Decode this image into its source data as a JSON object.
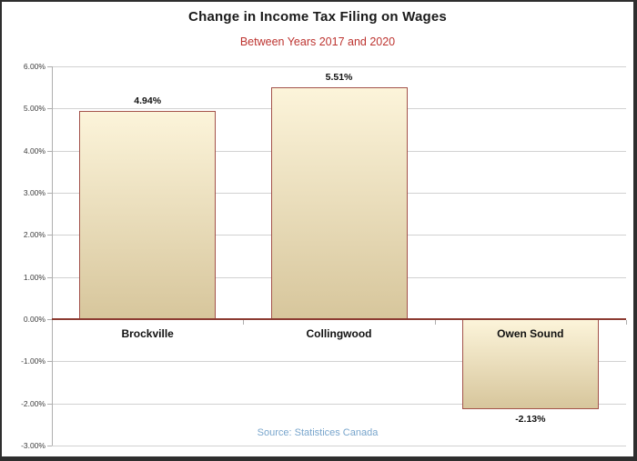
{
  "chart_data": {
    "type": "bar",
    "title": "Change in Income Tax Filing on Wages",
    "subtitle": "Between Years 2017 and 2020",
    "source": "Source: Statistices Canada",
    "categories": [
      "Brockville",
      "Collingwood",
      "Owen Sound"
    ],
    "values": [
      4.94,
      5.51,
      -2.13
    ],
    "value_labels": [
      "4.94%",
      "5.51%",
      "-2.13%"
    ],
    "ylim": [
      -3,
      6
    ],
    "ytick_step": 1,
    "ytick_labels": [
      "6.00%",
      "5.00%",
      "4.00%",
      "3.00%",
      "2.00%",
      "1.00%",
      "0.00%",
      "-1.00%",
      "-2.00%",
      "-3.00%"
    ],
    "grid": true,
    "legend": "none",
    "colors": {
      "title_text": "#1a1a1a",
      "subtitle_text": "#bd3430",
      "bar_fill_top": "#fcf4da",
      "bar_fill_bottom": "#d7c69c",
      "bar_border": "#a3524a",
      "zero_line": "#8c3b32",
      "gridline": "#d2d2d2",
      "axis": "#aeaeae",
      "source_text": "#78a5cc"
    }
  }
}
